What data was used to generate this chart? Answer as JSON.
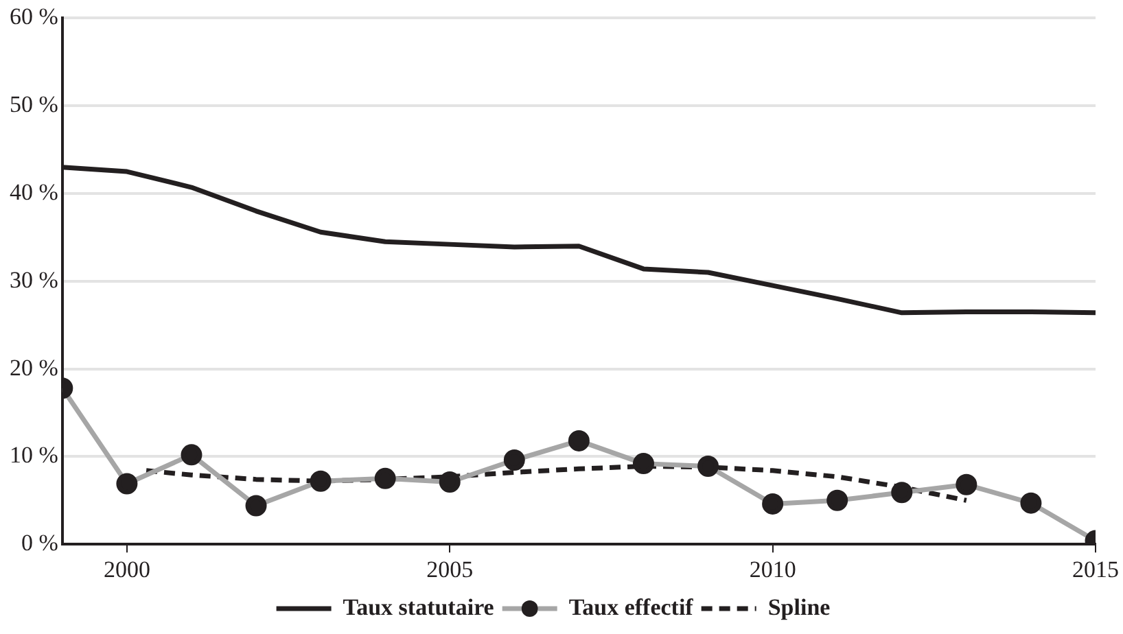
{
  "chart_data": {
    "type": "line",
    "xlim": [
      1999,
      2015
    ],
    "xticks": [
      2000,
      2005,
      2010,
      2015
    ],
    "ylim": [
      0,
      60
    ],
    "yticks": [
      {
        "value": 0,
        "label": "0 %"
      },
      {
        "value": 10,
        "label": "10 %"
      },
      {
        "value": 20,
        "label": "20 %"
      },
      {
        "value": 30,
        "label": "30 %"
      },
      {
        "value": 40,
        "label": "40 %"
      },
      {
        "value": 50,
        "label": "50 %"
      },
      {
        "value": 60,
        "label": "60 %"
      }
    ],
    "grid": "y",
    "legend": "bottom",
    "x": [
      1999,
      2000,
      2001,
      2002,
      2003,
      2004,
      2005,
      2006,
      2007,
      2008,
      2009,
      2010,
      2011,
      2012,
      2013,
      2014,
      2015
    ],
    "series": [
      {
        "name": "Taux statutaire",
        "color": "#231f20",
        "marker": "none",
        "line_style": "solid",
        "values": [
          43,
          42.5,
          40.7,
          38,
          35.6,
          34.5,
          34.2,
          33.9,
          34,
          31.4,
          31,
          29.5,
          28,
          26.4,
          26.5,
          26.5,
          26.4
        ]
      },
      {
        "name": "Taux effectif",
        "color": "#a6a6a6",
        "marker": "circle",
        "line_style": "solid",
        "values": [
          17.8,
          6.9,
          10.2,
          4.4,
          7.2,
          7.5,
          7.1,
          9.6,
          11.8,
          9.2,
          8.9,
          4.6,
          5.0,
          5.9,
          6.8,
          4.7,
          0.4
        ]
      },
      {
        "name": "Spline",
        "color": "#231f20",
        "marker": "none",
        "line_style": "dashed",
        "x": [
          2000.3,
          2001,
          2002,
          2003,
          2004,
          2005,
          2006,
          2007,
          2008,
          2009,
          2010,
          2011,
          2012,
          2013
        ],
        "values": [
          8.4,
          7.9,
          7.4,
          7.2,
          7.4,
          7.7,
          8.2,
          8.6,
          8.9,
          8.8,
          8.4,
          7.7,
          6.5,
          5.0
        ]
      }
    ]
  }
}
